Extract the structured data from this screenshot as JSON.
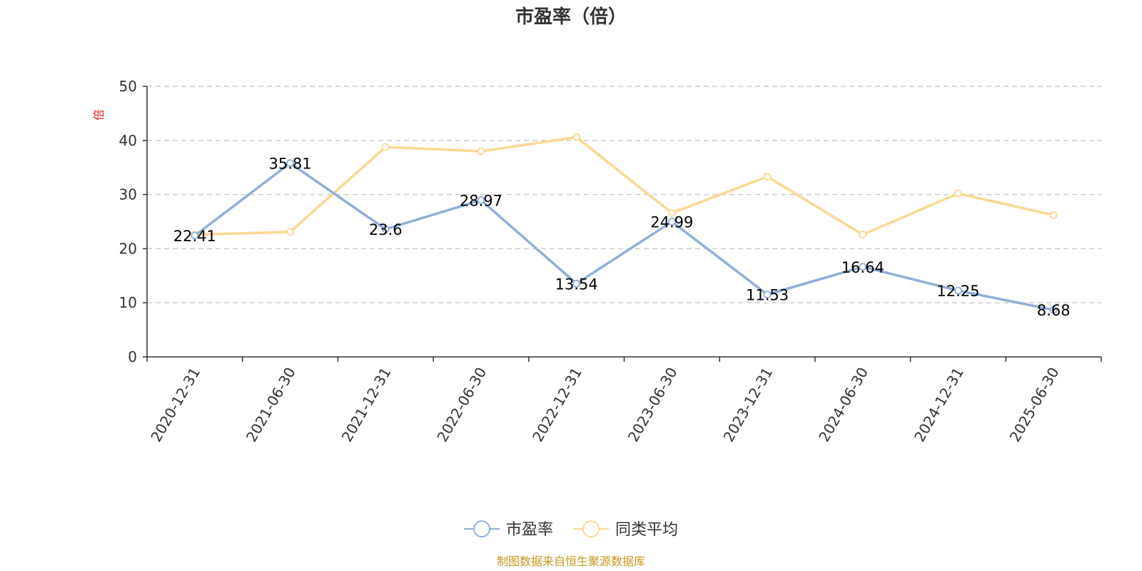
{
  "chart_data": {
    "type": "line",
    "title": "市盈率（倍）",
    "y_unit": "倍",
    "categories": [
      "2020-12-31",
      "2021-06-30",
      "2021-12-31",
      "2022-06-30",
      "2022-12-31",
      "2023-06-30",
      "2023-12-31",
      "2024-06-30",
      "2024-12-31",
      "2025-06-30"
    ],
    "ylim": [
      0,
      50
    ],
    "yticks": [
      0,
      10,
      20,
      30,
      40,
      50
    ],
    "grid": true,
    "legend_position": "bottom",
    "series": [
      {
        "name": "市盈率",
        "color": "#8fb0da",
        "values": [
          22.41,
          35.81,
          23.6,
          28.97,
          13.54,
          24.99,
          11.53,
          16.64,
          12.25,
          8.68
        ],
        "labels": [
          "22.41",
          "35.81",
          "23.6",
          "28.97",
          "13.54",
          "24.99",
          "11.53",
          "16.64",
          "12.25",
          "8.68"
        ]
      },
      {
        "name": "同类平均",
        "color": "#fbd893",
        "values": [
          22.6,
          23.1,
          38.8,
          38.0,
          40.6,
          26.6,
          33.3,
          22.6,
          30.2,
          26.2
        ]
      }
    ]
  },
  "source_text": "制图数据来自恒生聚源数据库",
  "colors": {
    "unit": "#e31c1c",
    "source": "#c8961e",
    "axis": "#333333",
    "grid": "#cccccc"
  }
}
